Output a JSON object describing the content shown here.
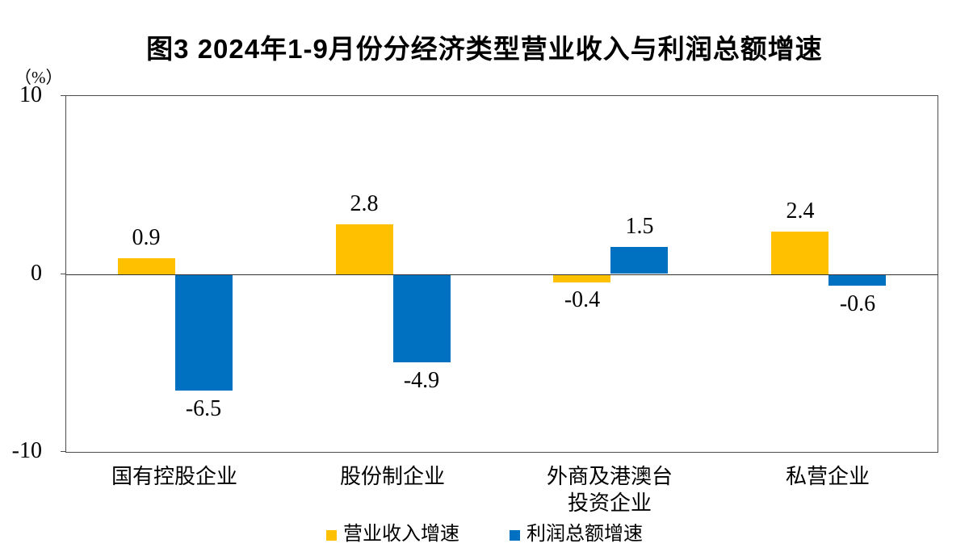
{
  "chart_data": {
    "type": "bar",
    "title": "图3 2024年1-9月份分经济类型营业收入与利润总额增速",
    "unit_label": "（%）",
    "categories": [
      "国有控股企业",
      "股份制企业",
      "外商及港澳台\n投资企业",
      "私营企业"
    ],
    "series": [
      {
        "name": "营业收入增速",
        "color": "#FFC000",
        "values": [
          0.9,
          2.8,
          -0.4,
          2.4
        ],
        "labels": [
          "0.9",
          "2.8",
          "-0.4",
          "2.4"
        ]
      },
      {
        "name": "利润总额增速",
        "color": "#0070C0",
        "values": [
          -6.5,
          -4.9,
          1.5,
          -0.6
        ],
        "labels": [
          "-6.5",
          "-4.9",
          "1.5",
          "-0.6"
        ]
      }
    ],
    "ylim": [
      -10,
      10
    ],
    "yticks": [
      10,
      0,
      -10
    ],
    "ytick_labels": [
      "10",
      "0",
      "-10"
    ],
    "grid": false,
    "legend_position": "bottom",
    "axis_color": "#4d4d4d",
    "zero_line_color": "#333333",
    "background_color": "#ffffff"
  }
}
